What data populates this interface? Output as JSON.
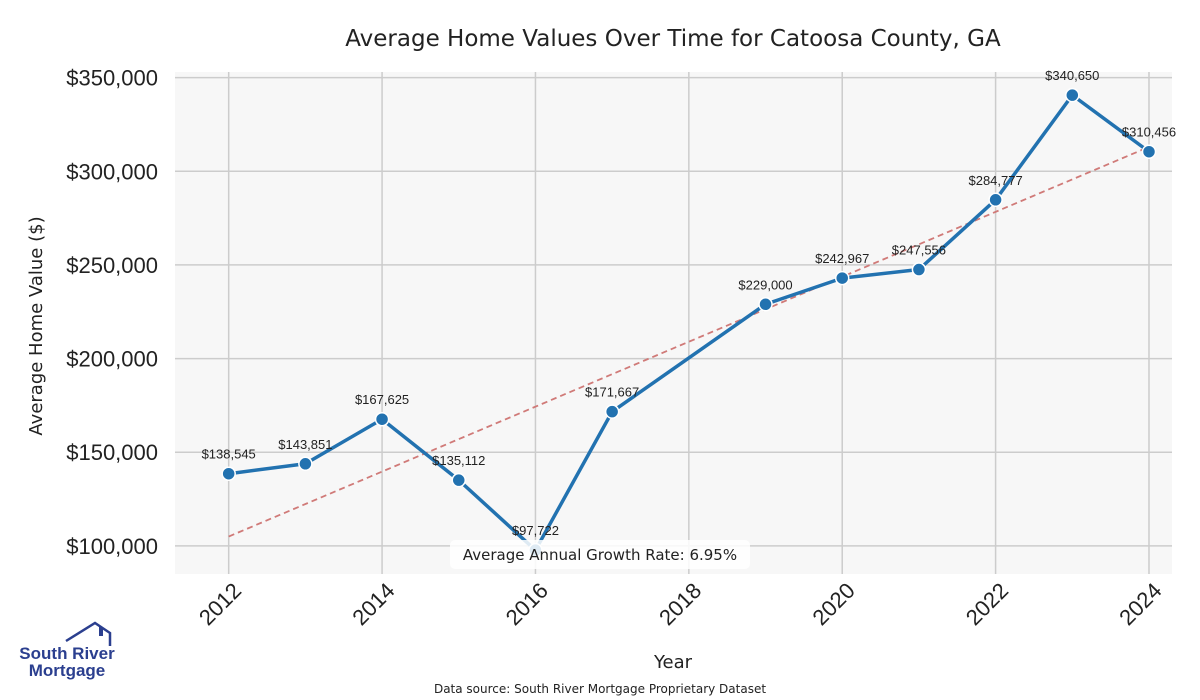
{
  "chart_data": {
    "type": "line",
    "title": "Average Home Values Over Time for Catoosa County, GA",
    "xlabel": "Year",
    "ylabel": "Average Home Value ($)",
    "x": [
      2012,
      2013,
      2014,
      2015,
      2016,
      2017,
      2019,
      2020,
      2021,
      2022,
      2023,
      2024
    ],
    "values": [
      138545,
      143851,
      167625,
      135112,
      97722,
      171667,
      229000,
      242967,
      247556,
      284777,
      340650,
      310456
    ],
    "data_labels": [
      "$138,545",
      "$143,851",
      "$167,625",
      "$135,112",
      "$97,722",
      "$171,667",
      "$229,000",
      "$242,967",
      "$247,556",
      "$284,777",
      "$340,650",
      "$310,456"
    ],
    "xlim": [
      2011.3,
      2024.3
    ],
    "ylim": [
      85000,
      353000
    ],
    "x_ticks": [
      2012,
      2014,
      2016,
      2018,
      2020,
      2022,
      2024
    ],
    "x_tick_labels": [
      "2012",
      "2014",
      "2016",
      "2018",
      "2020",
      "2022",
      "2024"
    ],
    "y_ticks": [
      100000,
      150000,
      200000,
      250000,
      300000,
      350000
    ],
    "y_tick_labels": [
      "$100,000",
      "$150,000",
      "$200,000",
      "$250,000",
      "$300,000",
      "$350,000"
    ],
    "trend_line": {
      "x": [
        2012,
        2024
      ],
      "y": [
        105000,
        313000
      ]
    },
    "grid": true,
    "annotation": "Average Annual Growth Rate: 6.95%"
  },
  "footer": {
    "source": "Data source: South River Mortgage Proprietary Dataset"
  },
  "logo": {
    "line1": "South River",
    "line2": "Mortgage"
  },
  "colors": {
    "line": "#2272b0",
    "trend": "#d07a78",
    "plot_bg": "#f7f7f7",
    "grid": "#cccccc",
    "logo": "#2b3f8f"
  }
}
